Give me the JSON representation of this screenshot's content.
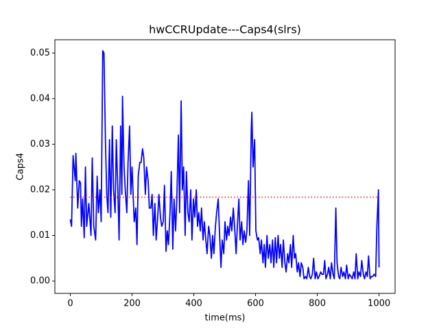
{
  "chart_data": {
    "type": "line",
    "title": "hwCCRUpdate---Caps4(slrs)",
    "x_label": "time(ms)",
    "y_label": "Caps4",
    "xlim": [
      -50,
      1052
    ],
    "ylim": [
      -0.0027,
      0.0529
    ],
    "xticks": [
      0,
      200,
      400,
      600,
      800,
      1000
    ],
    "yticks": [
      {
        "value": 0,
        "label": "0.00"
      },
      {
        "value": 0.01,
        "label": "0.01"
      },
      {
        "value": 0.02,
        "label": "0.02"
      },
      {
        "value": 0.03,
        "label": "0.03"
      },
      {
        "value": 0.04,
        "label": "0.04"
      },
      {
        "value": 0.05,
        "label": "0.05"
      }
    ],
    "grid": false,
    "series": [
      {
        "color": "#0000ff",
        "style": "solid",
        "x": [
          0,
          4,
          9,
          16,
          18,
          24,
          29,
          33,
          36,
          40,
          45,
          49,
          53,
          60,
          67,
          71,
          76,
          82,
          87,
          91,
          96,
          100,
          105,
          109,
          114,
          118,
          122,
          127,
          131,
          136,
          140,
          145,
          149,
          154,
          158,
          163,
          167,
          169,
          174,
          178,
          183,
          187,
          192,
          196,
          200,
          207,
          212,
          216,
          220,
          225,
          229,
          234,
          238,
          243,
          247,
          252,
          256,
          261,
          265,
          269,
          274,
          278,
          283,
          287,
          292,
          296,
          301,
          305,
          310,
          314,
          318,
          323,
          327,
          332,
          336,
          341,
          345,
          350,
          354,
          359,
          363,
          367,
          372,
          376,
          381,
          385,
          390,
          394,
          399,
          403,
          408,
          412,
          416,
          421,
          425,
          430,
          434,
          439,
          443,
          448,
          452,
          457,
          461,
          465,
          470,
          474,
          479,
          483,
          488,
          492,
          497,
          501,
          506,
          510,
          514,
          519,
          523,
          528,
          532,
          537,
          541,
          546,
          550,
          555,
          559,
          563,
          568,
          572,
          577,
          581,
          586,
          588,
          592,
          597,
          601,
          606,
          610,
          615,
          619,
          624,
          628,
          632,
          637,
          641,
          646,
          650,
          655,
          659,
          664,
          668,
          673,
          677,
          681,
          686,
          690,
          695,
          699,
          704,
          708,
          713,
          717,
          722,
          726,
          730,
          735,
          739,
          744,
          748,
          753,
          757,
          762,
          766,
          771,
          775,
          779,
          784,
          788,
          793,
          797,
          802,
          806,
          811,
          815,
          820,
          824,
          828,
          833,
          837,
          842,
          846,
          851,
          855,
          860,
          864,
          869,
          873,
          877,
          882,
          886,
          891,
          895,
          900,
          904,
          909,
          913,
          918,
          922,
          926,
          931,
          935,
          940,
          944,
          949,
          953,
          958,
          962,
          966,
          971,
          975,
          980,
          984,
          989,
          993,
          998,
          1000
        ],
        "values": [
          0.0135,
          0.012,
          0.0275,
          0.022,
          0.028,
          0.016,
          0.022,
          0.0215,
          0.012,
          0.018,
          0.0095,
          0.025,
          0.012,
          0.017,
          0.01,
          0.027,
          0.012,
          0.009,
          0.023,
          0.015,
          0.02,
          0.013,
          0.0505,
          0.05,
          0.03,
          0.019,
          0.015,
          0.031,
          0.014,
          0.034,
          0.02,
          0.015,
          0.031,
          0.02,
          0.009,
          0.034,
          0.019,
          0.0405,
          0.025,
          0.02,
          0.015,
          0.026,
          0.034,
          0.019,
          0.025,
          0.013,
          0.016,
          0.008,
          0.023,
          0.026,
          0.026,
          0.029,
          0.027,
          0.019,
          0.025,
          0.022,
          0.016,
          0.016,
          0.019,
          0.01,
          0.017,
          0.009,
          0.014,
          0.019,
          0.014,
          0.012,
          0.013,
          0.021,
          0.0065,
          0.011,
          0.008,
          0.015,
          0.024,
          0.007,
          0.018,
          0.011,
          0.018,
          0.032,
          0.015,
          0.0395,
          0.02,
          0.025,
          0.01,
          0.024,
          0.015,
          0.013,
          0.02,
          0.009,
          0.018,
          0.014,
          0.02,
          0.012,
          0.015,
          0.011,
          0.016,
          0.009,
          0.013,
          0.009,
          0.006,
          0.012,
          0.01,
          0.005,
          0.01,
          0.006,
          0.012,
          0.015,
          0.018,
          0.011,
          0.003,
          0.009,
          0.006,
          0.013,
          0.009,
          0.012,
          0.01,
          0.014,
          0.011,
          0.016,
          0.012,
          0.006,
          0.012,
          0.018,
          0.009,
          0.013,
          0.008,
          0.011,
          0.0085,
          0.011,
          0.022,
          0.01,
          0.033,
          0.037,
          0.025,
          0.031,
          0.011,
          0.009,
          0.0095,
          0.006,
          0.009,
          0.004,
          0.008,
          0.003,
          0.01,
          0.005,
          0.008,
          0.004,
          0.009,
          0.003,
          0.0095,
          0.004,
          0.01,
          0.005,
          0.008,
          0.003,
          0.009,
          0.004,
          0.002,
          0.006,
          0.004,
          0.008,
          0.003,
          0.01,
          0.005,
          0.006,
          0.002,
          0.004,
          0.001,
          0.004,
          0.003,
          0.0005,
          0.001,
          0.0005,
          0.003,
          0.001,
          0.0005,
          0.0015,
          0.005,
          0.0005,
          0.002,
          0.0005,
          0.001,
          0.002,
          0.0015,
          0.0015,
          0.0045,
          0.0005,
          0.0015,
          0.003,
          0.0005,
          0.004,
          0.0015,
          0.0005,
          0.016,
          0.004,
          0.001,
          0.0005,
          0.003,
          0.001,
          0.002,
          0.0005,
          0.0035,
          0.0005,
          0.0015,
          0.001,
          0.0005,
          0.002,
          0.0005,
          0.006,
          0.0005,
          0.002,
          0.001,
          0.0045,
          0.0015,
          0.0005,
          0.002,
          0.001,
          0.0055,
          0.0005,
          0.001,
          0.001,
          0.0015,
          0.001,
          0.012,
          0.02,
          0.003
        ]
      },
      {
        "color": "#ff0000",
        "style": "dotted",
        "x": [
          0,
          1000
        ],
        "values": [
          0.0184,
          0.0184
        ]
      }
    ]
  }
}
